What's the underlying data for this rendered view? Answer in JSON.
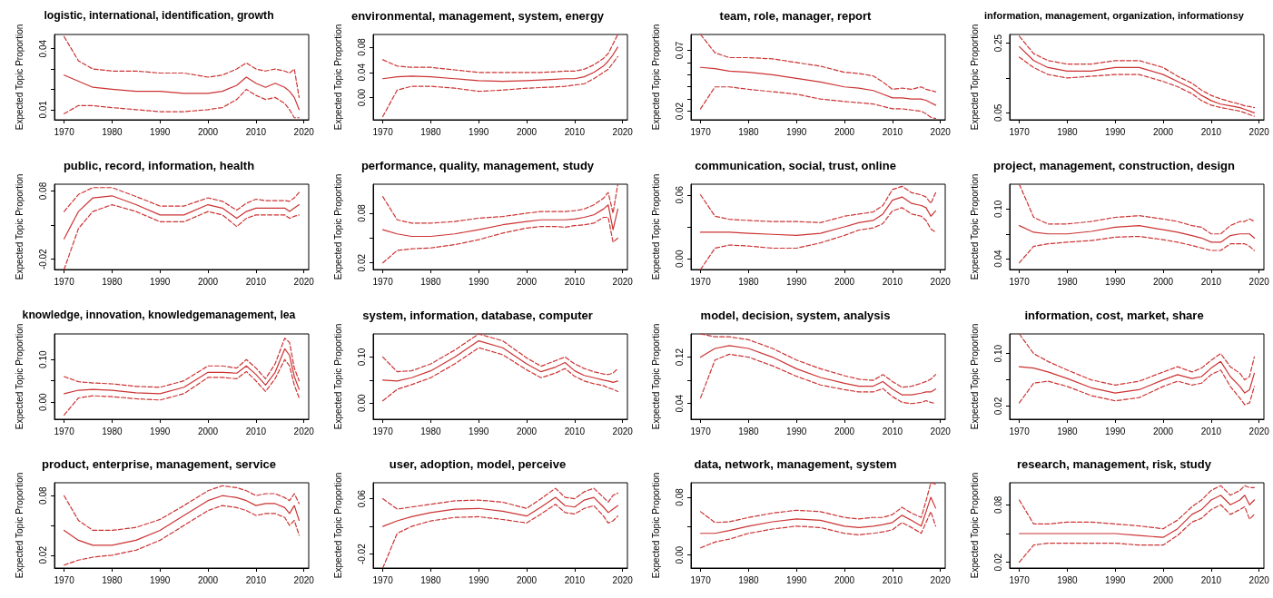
{
  "chart_data": [
    {
      "type": "line",
      "title": "logistic, international, identification, growth",
      "ylabel": "Expected Topic Proportion",
      "marker": "none",
      "x": [
        1970,
        1973,
        1976,
        1980,
        1985,
        1990,
        1995,
        2000,
        2003,
        2006,
        2008,
        2010,
        2012,
        2014,
        2016,
        2017,
        2018,
        2019
      ],
      "xlim": [
        1968,
        2021
      ],
      "xticks": [
        1970,
        1980,
        1990,
        2000,
        2010,
        2020
      ],
      "ylim": [
        0.005,
        0.047
      ],
      "yticks": [
        0.01,
        {
          "value": 0.02,
          "label": null
        },
        {
          "value": 0.03,
          "label": null
        },
        0.04
      ],
      "series": [
        {
          "color": "#cc3333",
          "line_style": "solid",
          "values": [
            0.027,
            0.024,
            0.021,
            0.02,
            0.019,
            0.019,
            0.018,
            0.018,
            0.019,
            0.022,
            0.026,
            0.023,
            0.021,
            0.023,
            0.021,
            0.019,
            0.016,
            0.01
          ]
        },
        {
          "color": "#cc3333",
          "line_style": "dashed",
          "values": [
            0.008,
            0.012,
            0.012,
            0.011,
            0.01,
            0.009,
            0.009,
            0.01,
            0.011,
            0.015,
            0.02,
            0.017,
            0.015,
            0.016,
            0.013,
            0.01,
            0.006,
            0.006
          ]
        },
        {
          "color": "#cc3333",
          "line_style": "dashed",
          "values": [
            0.046,
            0.034,
            0.03,
            0.029,
            0.029,
            0.028,
            0.028,
            0.026,
            0.027,
            0.03,
            0.033,
            0.03,
            0.029,
            0.03,
            0.029,
            0.028,
            0.03,
            0.016
          ]
        }
      ]
    },
    {
      "type": "line",
      "title": "environmental, management, system, energy",
      "ylabel": "Expected Topic Proportion",
      "marker": "none",
      "x": [
        1970,
        1973,
        1976,
        1980,
        1985,
        1990,
        1995,
        2000,
        2003,
        2006,
        2008,
        2010,
        2012,
        2014,
        2016,
        2017,
        2018,
        2019
      ],
      "xlim": [
        1968,
        2021
      ],
      "xticks": [
        1970,
        1980,
        1990,
        2000,
        2010,
        2020
      ],
      "ylim": [
        -0.035,
        0.1
      ],
      "yticks": [
        {
          "value": 0,
          "label": "0.00"
        },
        {
          "value": 0.04,
          "label": "0.04"
        },
        {
          "value": 0.08,
          "label": "0.08"
        }
      ],
      "series": [
        {
          "color": "#cc3333",
          "line_style": "solid",
          "values": [
            0.03,
            0.033,
            0.034,
            0.033,
            0.03,
            0.027,
            0.026,
            0.027,
            0.028,
            0.029,
            0.03,
            0.03,
            0.033,
            0.04,
            0.05,
            0.058,
            0.068,
            0.08
          ]
        },
        {
          "color": "#cc3333",
          "line_style": "dashed",
          "values": [
            -0.03,
            0.012,
            0.018,
            0.018,
            0.015,
            0.01,
            0.012,
            0.015,
            0.016,
            0.017,
            0.018,
            0.02,
            0.022,
            0.03,
            0.04,
            0.045,
            0.055,
            0.065
          ]
        },
        {
          "color": "#cc3333",
          "line_style": "dashed",
          "values": [
            0.06,
            0.05,
            0.048,
            0.048,
            0.044,
            0.04,
            0.04,
            0.04,
            0.04,
            0.041,
            0.042,
            0.042,
            0.045,
            0.052,
            0.062,
            0.07,
            0.085,
            0.1
          ]
        }
      ]
    },
    {
      "type": "line",
      "title": "team, role, manager, report",
      "ylabel": "Expected Topic Proportion",
      "marker": "none",
      "x": [
        1970,
        1973,
        1976,
        1980,
        1985,
        1990,
        1995,
        2000,
        2003,
        2006,
        2008,
        2010,
        2012,
        2014,
        2016,
        2017,
        2018,
        2019
      ],
      "xlim": [
        1968,
        2021
      ],
      "xticks": [
        1970,
        1980,
        1990,
        2000,
        2010,
        2020
      ],
      "ylim": [
        0.013,
        0.083
      ],
      "yticks": [
        0.02,
        {
          "value": 0.03,
          "label": null
        },
        {
          "value": 0.04,
          "label": null
        },
        {
          "value": 0.05,
          "label": null
        },
        {
          "value": 0.06,
          "label": null
        },
        0.07
      ],
      "series": [
        {
          "color": "#cc3333",
          "line_style": "solid",
          "values": [
            0.056,
            0.055,
            0.053,
            0.052,
            0.05,
            0.047,
            0.044,
            0.04,
            0.039,
            0.037,
            0.034,
            0.031,
            0.031,
            0.03,
            0.03,
            0.029,
            0.027,
            0.025
          ]
        },
        {
          "color": "#cc3333",
          "line_style": "dashed",
          "values": [
            0.022,
            0.04,
            0.04,
            0.038,
            0.036,
            0.034,
            0.03,
            0.028,
            0.027,
            0.026,
            0.024,
            0.022,
            0.022,
            0.021,
            0.02,
            0.018,
            0.015,
            0.014
          ]
        },
        {
          "color": "#cc3333",
          "line_style": "dashed",
          "values": [
            0.083,
            0.068,
            0.064,
            0.064,
            0.063,
            0.06,
            0.057,
            0.052,
            0.051,
            0.049,
            0.044,
            0.038,
            0.039,
            0.038,
            0.04,
            0.038,
            0.037,
            0.036
          ]
        }
      ]
    },
    {
      "type": "line",
      "title": "information, management, organization, informationsy",
      "ylabel": "Expected Topic Proportion",
      "marker": "none",
      "x": [
        1970,
        1973,
        1976,
        1980,
        1985,
        1990,
        1995,
        2000,
        2003,
        2006,
        2008,
        2010,
        2012,
        2014,
        2016,
        2017,
        2018,
        2019
      ],
      "xlim": [
        1968,
        2021
      ],
      "xticks": [
        1970,
        1980,
        1990,
        2000,
        2010,
        2020
      ],
      "ylim": [
        0.03,
        0.275
      ],
      "yticks": [
        0.05,
        {
          "value": 0.15,
          "label": null
        },
        0.25
      ],
      "series": [
        {
          "color": "#cc3333",
          "line_style": "solid",
          "values": [
            0.24,
            0.2,
            0.18,
            0.17,
            0.17,
            0.18,
            0.18,
            0.16,
            0.14,
            0.12,
            0.1,
            0.085,
            0.075,
            0.07,
            0.065,
            0.06,
            0.055,
            0.05
          ]
        },
        {
          "color": "#cc3333",
          "line_style": "dashed",
          "values": [
            0.21,
            0.18,
            0.16,
            0.15,
            0.155,
            0.16,
            0.16,
            0.14,
            0.125,
            0.105,
            0.085,
            0.072,
            0.065,
            0.06,
            0.055,
            0.05,
            0.045,
            0.04
          ]
        },
        {
          "color": "#cc3333",
          "line_style": "dashed",
          "values": [
            0.27,
            0.22,
            0.2,
            0.19,
            0.19,
            0.2,
            0.2,
            0.18,
            0.155,
            0.135,
            0.115,
            0.1,
            0.09,
            0.082,
            0.075,
            0.07,
            0.068,
            0.065
          ]
        }
      ]
    },
    {
      "type": "line",
      "title": "public, record, information, health",
      "ylabel": "Expected Topic Proportion",
      "marker": "none",
      "x": [
        1970,
        1973,
        1976,
        1980,
        1985,
        1990,
        1995,
        2000,
        2003,
        2006,
        2008,
        2010,
        2012,
        2014,
        2016,
        2017,
        2018,
        2019
      ],
      "xlim": [
        1968,
        2021
      ],
      "xticks": [
        1970,
        1980,
        1990,
        2000,
        2010,
        2020
      ],
      "ylim": [
        -0.035,
        0.09
      ],
      "yticks": [
        -0.02,
        {
          "value": 0.03,
          "label": null
        },
        0.08
      ],
      "series": [
        {
          "color": "#cc3333",
          "line_style": "solid",
          "values": [
            0.01,
            0.05,
            0.07,
            0.073,
            0.06,
            0.045,
            0.045,
            0.06,
            0.055,
            0.04,
            0.05,
            0.055,
            0.055,
            0.055,
            0.055,
            0.05,
            0.055,
            0.06
          ]
        },
        {
          "color": "#cc3333",
          "line_style": "dashed",
          "values": [
            -0.035,
            0.025,
            0.05,
            0.06,
            0.05,
            0.035,
            0.035,
            0.05,
            0.045,
            0.028,
            0.04,
            0.045,
            0.045,
            0.045,
            0.045,
            0.04,
            0.043,
            0.045
          ]
        },
        {
          "color": "#cc3333",
          "line_style": "dashed",
          "values": [
            0.05,
            0.075,
            0.085,
            0.085,
            0.072,
            0.058,
            0.058,
            0.07,
            0.065,
            0.052,
            0.062,
            0.068,
            0.066,
            0.066,
            0.066,
            0.065,
            0.07,
            0.078
          ]
        }
      ]
    },
    {
      "type": "line",
      "title": "performance, quality, management, study",
      "ylabel": "Expected Topic Proportion",
      "marker": "none",
      "x": [
        1970,
        1973,
        1976,
        1980,
        1985,
        1990,
        1995,
        2000,
        2003,
        2006,
        2008,
        2010,
        2012,
        2014,
        2016,
        2017,
        2018,
        2019
      ],
      "xlim": [
        1968,
        2021
      ],
      "xticks": [
        1970,
        1980,
        1990,
        2000,
        2010,
        2020
      ],
      "ylim": [
        0.012,
        0.115
      ],
      "yticks": [
        0.02,
        {
          "value": 0.05,
          "label": null
        },
        0.08
      ],
      "series": [
        {
          "color": "#cc3333",
          "line_style": "solid",
          "values": [
            0.06,
            0.055,
            0.052,
            0.052,
            0.055,
            0.06,
            0.066,
            0.07,
            0.072,
            0.072,
            0.072,
            0.073,
            0.075,
            0.078,
            0.085,
            0.09,
            0.06,
            0.085
          ]
        },
        {
          "color": "#cc3333",
          "line_style": "dashed",
          "values": [
            0.02,
            0.035,
            0.037,
            0.038,
            0.042,
            0.048,
            0.056,
            0.062,
            0.064,
            0.064,
            0.063,
            0.065,
            0.066,
            0.068,
            0.075,
            0.075,
            0.045,
            0.05
          ]
        },
        {
          "color": "#cc3333",
          "line_style": "dashed",
          "values": [
            0.1,
            0.072,
            0.068,
            0.068,
            0.07,
            0.074,
            0.076,
            0.08,
            0.082,
            0.082,
            0.082,
            0.083,
            0.085,
            0.09,
            0.098,
            0.105,
            0.08,
            0.115
          ]
        }
      ]
    },
    {
      "type": "line",
      "title": "communication, social, trust, online",
      "ylabel": "Expected Topic Proportion",
      "marker": "none",
      "x": [
        1970,
        1973,
        1976,
        1980,
        1985,
        1990,
        1995,
        2000,
        2003,
        2006,
        2008,
        2010,
        2012,
        2014,
        2016,
        2017,
        2018,
        2019
      ],
      "xlim": [
        1968,
        2021
      ],
      "xticks": [
        1970,
        1980,
        1990,
        2000,
        2010,
        2020
      ],
      "ylim": [
        -0.01,
        0.07
      ],
      "yticks": [
        {
          "value": 0,
          "label": "0.00"
        },
        {
          "value": 0.03,
          "label": null
        },
        0.06
      ],
      "series": [
        {
          "color": "#cc3333",
          "line_style": "solid",
          "values": [
            0.025,
            0.025,
            0.025,
            0.024,
            0.023,
            0.022,
            0.024,
            0.03,
            0.034,
            0.036,
            0.042,
            0.055,
            0.058,
            0.052,
            0.05,
            0.048,
            0.04,
            0.045
          ]
        },
        {
          "color": "#cc3333",
          "line_style": "dashed",
          "values": [
            -0.01,
            0.01,
            0.013,
            0.012,
            0.01,
            0.01,
            0.015,
            0.022,
            0.027,
            0.029,
            0.033,
            0.045,
            0.048,
            0.042,
            0.04,
            0.036,
            0.028,
            0.025
          ]
        },
        {
          "color": "#cc3333",
          "line_style": "dashed",
          "values": [
            0.06,
            0.04,
            0.037,
            0.036,
            0.035,
            0.035,
            0.034,
            0.04,
            0.042,
            0.044,
            0.05,
            0.065,
            0.068,
            0.062,
            0.06,
            0.058,
            0.052,
            0.062
          ]
        }
      ]
    },
    {
      "type": "line",
      "title": "project, management, construction, design",
      "ylabel": "Expected Topic Proportion",
      "marker": "none",
      "x": [
        1970,
        1973,
        1976,
        1980,
        1985,
        1990,
        1995,
        2000,
        2003,
        2006,
        2008,
        2010,
        2012,
        2014,
        2016,
        2017,
        2018,
        2019
      ],
      "xlim": [
        1968,
        2021
      ],
      "xticks": [
        1970,
        1980,
        1990,
        2000,
        2010,
        2020
      ],
      "ylim": [
        0.027,
        0.13
      ],
      "yticks": [
        0.04,
        {
          "value": 0.07,
          "label": null
        },
        {
          "value": 0.1,
          "label": "0.10"
        }
      ],
      "series": [
        {
          "color": "#cc3333",
          "line_style": "solid",
          "values": [
            0.08,
            0.072,
            0.07,
            0.07,
            0.073,
            0.078,
            0.08,
            0.075,
            0.072,
            0.068,
            0.065,
            0.06,
            0.06,
            0.068,
            0.07,
            0.07,
            0.07,
            0.065
          ]
        },
        {
          "color": "#cc3333",
          "line_style": "dashed",
          "values": [
            0.035,
            0.055,
            0.058,
            0.06,
            0.062,
            0.066,
            0.067,
            0.063,
            0.06,
            0.056,
            0.053,
            0.05,
            0.05,
            0.058,
            0.058,
            0.058,
            0.055,
            0.05
          ]
        },
        {
          "color": "#cc3333",
          "line_style": "dashed",
          "values": [
            0.13,
            0.09,
            0.082,
            0.082,
            0.085,
            0.09,
            0.092,
            0.088,
            0.085,
            0.08,
            0.078,
            0.07,
            0.07,
            0.08,
            0.085,
            0.085,
            0.088,
            0.085
          ]
        }
      ]
    },
    {
      "type": "line",
      "title": "knowledge, innovation, knowledgemanagement, lea",
      "ylabel": "Expected Topic Proportion",
      "marker": "none",
      "x": [
        1970,
        1973,
        1976,
        1980,
        1985,
        1990,
        1995,
        2000,
        2003,
        2006,
        2008,
        2010,
        2012,
        2014,
        2016,
        2017,
        2018,
        2019
      ],
      "xlim": [
        1968,
        2021
      ],
      "xticks": [
        1970,
        1980,
        1990,
        2000,
        2010,
        2020
      ],
      "ylim": [
        -0.04,
        0.16
      ],
      "yticks": [
        {
          "value": 0,
          "label": "0.00"
        },
        {
          "value": 0.05,
          "label": null
        },
        {
          "value": 0.1,
          "label": "0.10"
        }
      ],
      "series": [
        {
          "color": "#cc3333",
          "line_style": "solid",
          "values": [
            0.02,
            0.028,
            0.03,
            0.028,
            0.022,
            0.02,
            0.035,
            0.07,
            0.07,
            0.068,
            0.085,
            0.065,
            0.04,
            0.07,
            0.125,
            0.11,
            0.06,
            0.03
          ]
        },
        {
          "color": "#cc3333",
          "line_style": "dashed",
          "values": [
            -0.03,
            0.01,
            0.015,
            0.013,
            0.008,
            0.005,
            0.02,
            0.058,
            0.058,
            0.055,
            0.072,
            0.05,
            0.025,
            0.055,
            0.1,
            0.085,
            0.04,
            0.01
          ]
        },
        {
          "color": "#cc3333",
          "line_style": "dashed",
          "values": [
            0.06,
            0.048,
            0.045,
            0.043,
            0.037,
            0.035,
            0.05,
            0.085,
            0.085,
            0.08,
            0.1,
            0.08,
            0.055,
            0.09,
            0.15,
            0.14,
            0.08,
            0.05
          ]
        }
      ]
    },
    {
      "type": "line",
      "title": "system, information, database, computer",
      "ylabel": "Expected Topic Proportion",
      "marker": "none",
      "x": [
        1970,
        1973,
        1976,
        1980,
        1985,
        1990,
        1995,
        2000,
        2003,
        2006,
        2008,
        2010,
        2012,
        2014,
        2016,
        2017,
        2018,
        2019
      ],
      "xlim": [
        1968,
        2021
      ],
      "xticks": [
        1970,
        1980,
        1990,
        2000,
        2010,
        2020
      ],
      "ylim": [
        -0.035,
        0.15
      ],
      "yticks": [
        {
          "value": 0,
          "label": "0.00"
        },
        {
          "value": 0.05,
          "label": null
        },
        {
          "value": 0.1,
          "label": "0.10"
        }
      ],
      "series": [
        {
          "color": "#cc3333",
          "line_style": "solid",
          "values": [
            0.05,
            0.048,
            0.055,
            0.07,
            0.1,
            0.135,
            0.12,
            0.085,
            0.068,
            0.078,
            0.088,
            0.07,
            0.06,
            0.055,
            0.05,
            0.048,
            0.045,
            0.048
          ]
        },
        {
          "color": "#cc3333",
          "line_style": "dashed",
          "values": [
            0.005,
            0.03,
            0.04,
            0.055,
            0.085,
            0.12,
            0.105,
            0.072,
            0.055,
            0.065,
            0.075,
            0.058,
            0.048,
            0.042,
            0.038,
            0.033,
            0.03,
            0.025
          ]
        },
        {
          "color": "#cc3333",
          "line_style": "dashed",
          "values": [
            0.1,
            0.068,
            0.07,
            0.085,
            0.115,
            0.15,
            0.135,
            0.098,
            0.08,
            0.092,
            0.1,
            0.085,
            0.075,
            0.068,
            0.063,
            0.062,
            0.065,
            0.075
          ]
        }
      ]
    },
    {
      "type": "line",
      "title": "model, decision, system, analysis",
      "ylabel": "Expected Topic Proportion",
      "marker": "none",
      "x": [
        1970,
        1973,
        1976,
        1980,
        1985,
        1990,
        1995,
        2000,
        2003,
        2006,
        2008,
        2010,
        2012,
        2014,
        2016,
        2017,
        2018,
        2019
      ],
      "xlim": [
        1968,
        2021
      ],
      "xticks": [
        1970,
        1980,
        1990,
        2000,
        2010,
        2020
      ],
      "ylim": [
        0.013,
        0.16
      ],
      "yticks": [
        0.04,
        {
          "value": 0.08,
          "label": null
        },
        0.12
      ],
      "series": [
        {
          "color": "#cc3333",
          "line_style": "solid",
          "values": [
            0.12,
            0.135,
            0.14,
            0.135,
            0.12,
            0.1,
            0.085,
            0.075,
            0.07,
            0.07,
            0.078,
            0.065,
            0.055,
            0.055,
            0.058,
            0.06,
            0.06,
            0.065
          ]
        },
        {
          "color": "#cc3333",
          "line_style": "dashed",
          "values": [
            0.05,
            0.115,
            0.125,
            0.12,
            0.105,
            0.087,
            0.072,
            0.064,
            0.06,
            0.06,
            0.066,
            0.052,
            0.042,
            0.04,
            0.042,
            0.045,
            0.042,
            0.04
          ]
        },
        {
          "color": "#cc3333",
          "line_style": "dashed",
          "values": [
            0.16,
            0.155,
            0.155,
            0.15,
            0.135,
            0.115,
            0.1,
            0.088,
            0.082,
            0.08,
            0.09,
            0.078,
            0.068,
            0.07,
            0.075,
            0.078,
            0.082,
            0.09
          ]
        }
      ]
    },
    {
      "type": "line",
      "title": "information, cost, market, share",
      "ylabel": "Expected Topic Proportion",
      "marker": "none",
      "x": [
        1970,
        1973,
        1976,
        1980,
        1985,
        1990,
        1995,
        2000,
        2003,
        2006,
        2008,
        2010,
        2012,
        2014,
        2016,
        2017,
        2018,
        2019
      ],
      "xlim": [
        1968,
        2021
      ],
      "xticks": [
        1970,
        1980,
        1990,
        2000,
        2010,
        2020
      ],
      "ylim": [
        0,
        0.13
      ],
      "yticks": [
        0.02,
        {
          "value": 0.06,
          "label": null
        },
        {
          "value": 0.1,
          "label": "0.10"
        }
      ],
      "series": [
        {
          "color": "#cc3333",
          "line_style": "solid",
          "values": [
            0.08,
            0.078,
            0.072,
            0.062,
            0.048,
            0.04,
            0.045,
            0.06,
            0.068,
            0.062,
            0.065,
            0.078,
            0.088,
            0.065,
            0.05,
            0.04,
            0.045,
            0.07
          ]
        },
        {
          "color": "#cc3333",
          "line_style": "dashed",
          "values": [
            0.025,
            0.055,
            0.058,
            0.05,
            0.036,
            0.028,
            0.033,
            0.05,
            0.058,
            0.052,
            0.055,
            0.068,
            0.075,
            0.05,
            0.032,
            0.022,
            0.025,
            0.05
          ]
        },
        {
          "color": "#cc3333",
          "line_style": "dashed",
          "values": [
            0.13,
            0.1,
            0.088,
            0.075,
            0.06,
            0.052,
            0.058,
            0.072,
            0.08,
            0.072,
            0.078,
            0.09,
            0.1,
            0.08,
            0.07,
            0.06,
            0.065,
            0.095
          ]
        }
      ]
    },
    {
      "type": "line",
      "title": "product, enterprise, management, service",
      "ylabel": "Expected Topic Proportion",
      "marker": "none",
      "x": [
        1970,
        1973,
        1976,
        1980,
        1985,
        1990,
        1995,
        2000,
        2003,
        2006,
        2008,
        2010,
        2012,
        2014,
        2016,
        2017,
        2018,
        2019
      ],
      "xlim": [
        1968,
        2021
      ],
      "xticks": [
        1970,
        1980,
        1990,
        2000,
        2010,
        2020
      ],
      "ylim": [
        0.007,
        0.093
      ],
      "yticks": [
        0.02,
        {
          "value": 0.05,
          "label": null
        },
        0.08
      ],
      "series": [
        {
          "color": "#cc3333",
          "line_style": "solid",
          "values": [
            0.045,
            0.035,
            0.03,
            0.03,
            0.035,
            0.045,
            0.06,
            0.075,
            0.08,
            0.078,
            0.075,
            0.07,
            0.072,
            0.072,
            0.068,
            0.062,
            0.07,
            0.055
          ]
        },
        {
          "color": "#cc3333",
          "line_style": "dashed",
          "values": [
            0.01,
            0.015,
            0.018,
            0.02,
            0.025,
            0.035,
            0.05,
            0.065,
            0.07,
            0.068,
            0.065,
            0.06,
            0.062,
            0.062,
            0.058,
            0.05,
            0.055,
            0.04
          ]
        },
        {
          "color": "#cc3333",
          "line_style": "dashed",
          "values": [
            0.08,
            0.055,
            0.045,
            0.045,
            0.048,
            0.056,
            0.07,
            0.085,
            0.09,
            0.088,
            0.085,
            0.08,
            0.082,
            0.082,
            0.078,
            0.075,
            0.082,
            0.072
          ]
        }
      ]
    },
    {
      "type": "line",
      "title": "user, adoption, model, perceive",
      "ylabel": "Expected Topic Proportion",
      "marker": "none",
      "x": [
        1970,
        1973,
        1976,
        1980,
        1985,
        1990,
        1995,
        2000,
        2003,
        2006,
        2008,
        2010,
        2012,
        2014,
        2016,
        2017,
        2018,
        2019
      ],
      "xlim": [
        1968,
        2021
      ],
      "xticks": [
        1970,
        1980,
        1990,
        2000,
        2010,
        2020
      ],
      "ylim": [
        -0.04,
        0.083
      ],
      "yticks": [
        -0.02,
        {
          "value": 0.02,
          "label": null
        },
        0.06
      ],
      "series": [
        {
          "color": "#cc3333",
          "line_style": "solid",
          "values": [
            0.02,
            0.028,
            0.034,
            0.04,
            0.045,
            0.046,
            0.042,
            0.035,
            0.048,
            0.062,
            0.05,
            0.048,
            0.058,
            0.062,
            0.048,
            0.04,
            0.045,
            0.05
          ]
        },
        {
          "color": "#cc3333",
          "line_style": "dashed",
          "values": [
            -0.04,
            0.01,
            0.02,
            0.028,
            0.033,
            0.034,
            0.03,
            0.025,
            0.038,
            0.052,
            0.04,
            0.038,
            0.046,
            0.05,
            0.035,
            0.025,
            0.028,
            0.035
          ]
        },
        {
          "color": "#cc3333",
          "line_style": "dashed",
          "values": [
            0.06,
            0.045,
            0.048,
            0.052,
            0.057,
            0.058,
            0.055,
            0.046,
            0.06,
            0.075,
            0.062,
            0.06,
            0.07,
            0.075,
            0.062,
            0.055,
            0.065,
            0.068
          ]
        }
      ]
    },
    {
      "type": "line",
      "title": "data, network, management, system",
      "ylabel": "Expected Topic Proportion",
      "marker": "none",
      "x": [
        1970,
        1973,
        1976,
        1980,
        1985,
        1990,
        1995,
        2000,
        2003,
        2006,
        2008,
        2010,
        2012,
        2014,
        2016,
        2017,
        2018,
        2019
      ],
      "xlim": [
        1968,
        2021
      ],
      "xticks": [
        1970,
        1980,
        1990,
        2000,
        2010,
        2020
      ],
      "ylim": [
        -0.018,
        0.1
      ],
      "yticks": [
        {
          "value": 0,
          "label": "0.00"
        },
        {
          "value": 0.04,
          "label": null
        },
        0.08
      ],
      "series": [
        {
          "color": "#cc3333",
          "line_style": "solid",
          "values": [
            0.03,
            0.03,
            0.034,
            0.04,
            0.046,
            0.05,
            0.048,
            0.04,
            0.038,
            0.04,
            0.042,
            0.045,
            0.055,
            0.048,
            0.04,
            0.06,
            0.08,
            0.065
          ]
        },
        {
          "color": "#cc3333",
          "line_style": "dashed",
          "values": [
            0.01,
            0.018,
            0.022,
            0.03,
            0.036,
            0.04,
            0.038,
            0.03,
            0.028,
            0.03,
            0.032,
            0.035,
            0.045,
            0.038,
            0.03,
            0.045,
            0.06,
            0.04
          ]
        },
        {
          "color": "#cc3333",
          "line_style": "dashed",
          "values": [
            0.06,
            0.045,
            0.046,
            0.052,
            0.058,
            0.062,
            0.06,
            0.052,
            0.05,
            0.052,
            0.052,
            0.056,
            0.066,
            0.058,
            0.052,
            0.075,
            0.1,
            0.098
          ]
        }
      ]
    },
    {
      "type": "line",
      "title": "research, management, risk, study",
      "ylabel": "Expected Topic Proportion",
      "marker": "none",
      "x": [
        1970,
        1973,
        1976,
        1980,
        1985,
        1990,
        1995,
        2000,
        2003,
        2006,
        2008,
        2010,
        2012,
        2014,
        2016,
        2017,
        2018,
        2019
      ],
      "xlim": [
        1968,
        2021
      ],
      "xticks": [
        1970,
        1980,
        1990,
        2000,
        2010,
        2020
      ],
      "ylim": [
        0.014,
        0.103
      ],
      "yticks": [
        0.02,
        {
          "value": 0.05,
          "label": null
        },
        0.08
      ],
      "series": [
        {
          "color": "#cc3333",
          "line_style": "solid",
          "values": [
            0.05,
            0.05,
            0.05,
            0.05,
            0.05,
            0.05,
            0.048,
            0.046,
            0.055,
            0.07,
            0.075,
            0.085,
            0.09,
            0.08,
            0.085,
            0.09,
            0.08,
            0.085
          ]
        },
        {
          "color": "#cc3333",
          "line_style": "dashed",
          "values": [
            0.02,
            0.038,
            0.04,
            0.04,
            0.04,
            0.04,
            0.038,
            0.038,
            0.048,
            0.062,
            0.066,
            0.075,
            0.08,
            0.07,
            0.075,
            0.078,
            0.065,
            0.07
          ]
        },
        {
          "color": "#cc3333",
          "line_style": "dashed",
          "values": [
            0.085,
            0.06,
            0.06,
            0.062,
            0.062,
            0.06,
            0.058,
            0.055,
            0.064,
            0.078,
            0.085,
            0.095,
            0.1,
            0.09,
            0.095,
            0.1,
            0.098,
            0.098
          ]
        }
      ]
    }
  ]
}
